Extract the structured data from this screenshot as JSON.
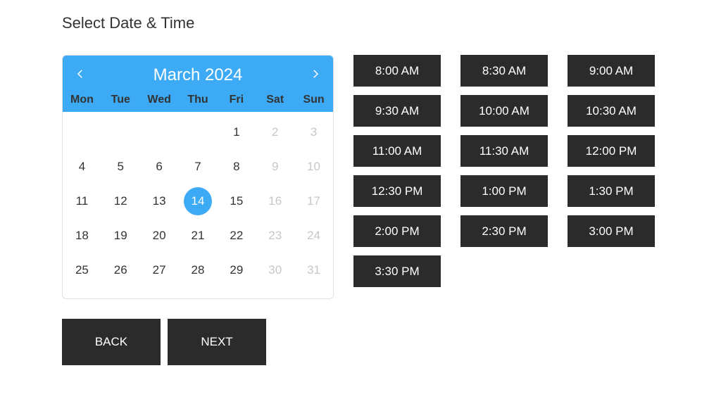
{
  "title": "Select Date & Time",
  "colors": {
    "calendar_header_bg": "#3daaf5",
    "calendar_header_fg": "#ffffff",
    "day_text": "#333333",
    "day_disabled": "#c7c7c7",
    "selected_bg": "#3daaf5",
    "selected_fg": "#ffffff",
    "slot_bg": "#2b2b2b",
    "slot_fg": "#ffffff",
    "button_bg": "#2b2b2b",
    "button_fg": "#ffffff",
    "page_bg": "#ffffff",
    "calendar_border": "#e0e0e0"
  },
  "calendar": {
    "month_label": "March 2024",
    "dow": [
      "Mon",
      "Tue",
      "Wed",
      "Thu",
      "Fri",
      "Sat",
      "Sun"
    ],
    "leading_blanks": 4,
    "days": [
      {
        "n": "1",
        "state": "active"
      },
      {
        "n": "2",
        "state": "disabled"
      },
      {
        "n": "3",
        "state": "disabled"
      },
      {
        "n": "4",
        "state": "active"
      },
      {
        "n": "5",
        "state": "active"
      },
      {
        "n": "6",
        "state": "active"
      },
      {
        "n": "7",
        "state": "active"
      },
      {
        "n": "8",
        "state": "active"
      },
      {
        "n": "9",
        "state": "disabled"
      },
      {
        "n": "10",
        "state": "disabled"
      },
      {
        "n": "11",
        "state": "active"
      },
      {
        "n": "12",
        "state": "active"
      },
      {
        "n": "13",
        "state": "active"
      },
      {
        "n": "14",
        "state": "selected"
      },
      {
        "n": "15",
        "state": "active"
      },
      {
        "n": "16",
        "state": "disabled"
      },
      {
        "n": "17",
        "state": "disabled"
      },
      {
        "n": "18",
        "state": "active"
      },
      {
        "n": "19",
        "state": "active"
      },
      {
        "n": "20",
        "state": "active"
      },
      {
        "n": "21",
        "state": "active"
      },
      {
        "n": "22",
        "state": "active"
      },
      {
        "n": "23",
        "state": "disabled"
      },
      {
        "n": "24",
        "state": "disabled"
      },
      {
        "n": "25",
        "state": "active"
      },
      {
        "n": "26",
        "state": "active"
      },
      {
        "n": "27",
        "state": "active"
      },
      {
        "n": "28",
        "state": "active"
      },
      {
        "n": "29",
        "state": "active"
      },
      {
        "n": "30",
        "state": "disabled"
      },
      {
        "n": "31",
        "state": "disabled"
      }
    ]
  },
  "time_slots": [
    "8:00 AM",
    "8:30 AM",
    "9:00 AM",
    "9:30 AM",
    "10:00 AM",
    "10:30 AM",
    "11:00 AM",
    "11:30 AM",
    "12:00 PM",
    "12:30 PM",
    "1:00 PM",
    "1:30 PM",
    "2:00 PM",
    "2:30 PM",
    "3:00 PM",
    "3:30 PM"
  ],
  "buttons": {
    "back": "BACK",
    "next": "NEXT"
  }
}
